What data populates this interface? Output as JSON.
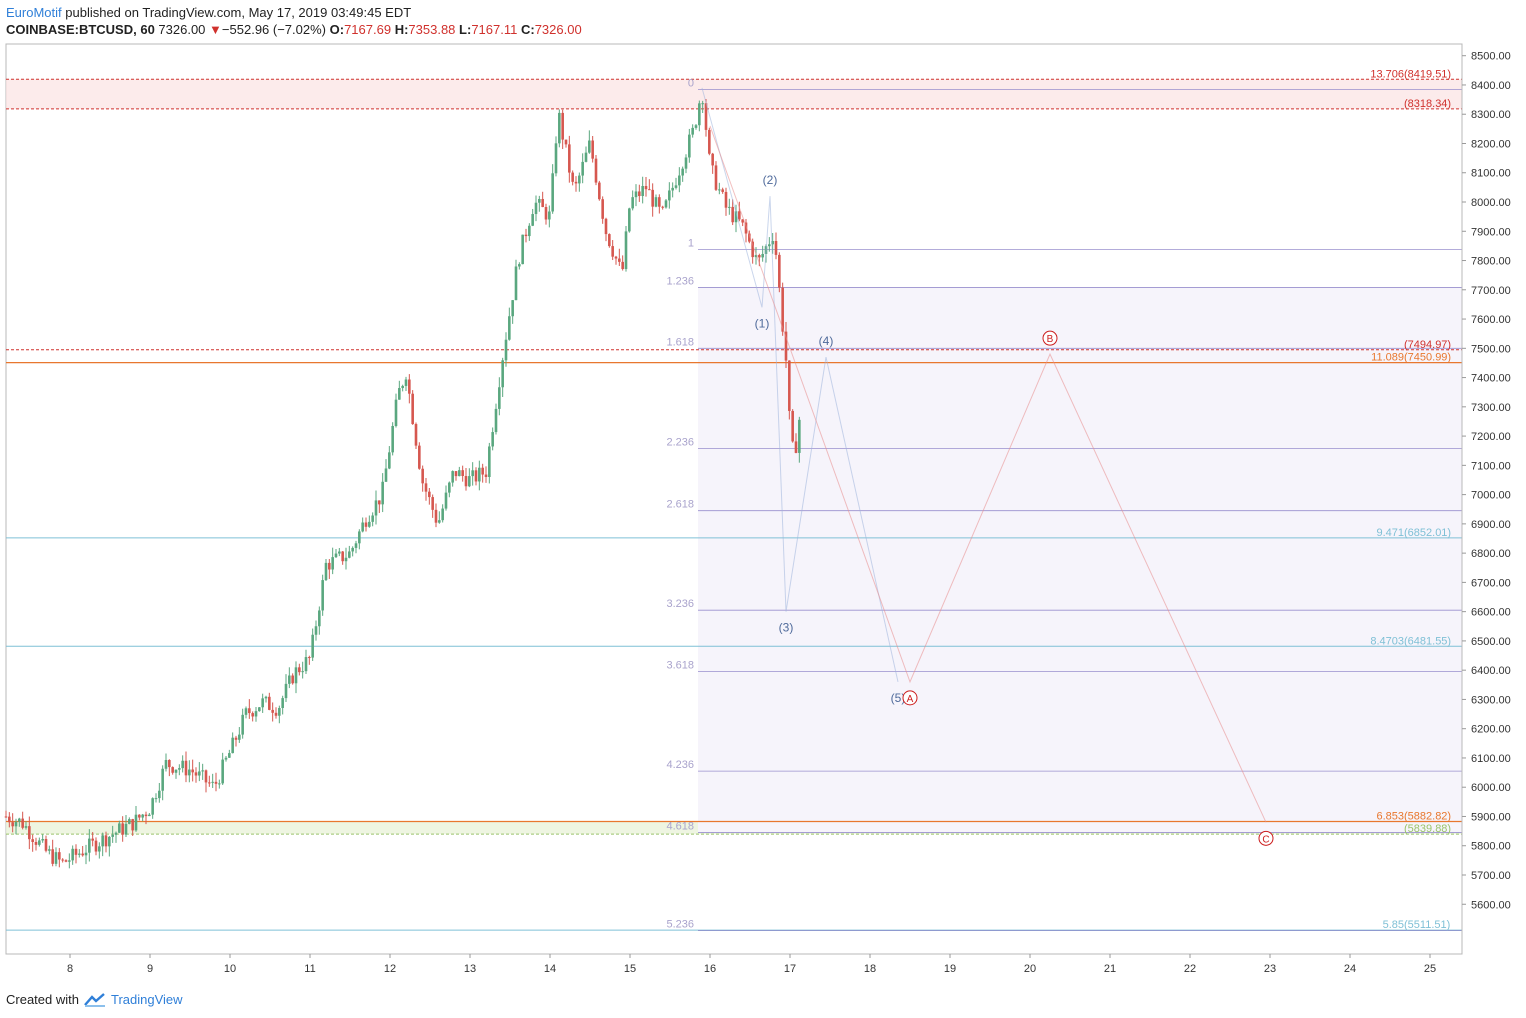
{
  "header": {
    "brand": "EuroMotif",
    "published": " published on TradingView.com, May 17, 2019 03:49:45 EDT",
    "symbol": "COINBASE:BTCUSD, 60",
    "last": "7326.00",
    "change_arrow": "▼",
    "change": "−552.96 (−7.02%)",
    "o_label": "O:",
    "o_value": "7167.69",
    "h_label": "H:",
    "h_value": "7353.88",
    "l_label": "L:",
    "l_value": "7167.11",
    "c_label": "C:",
    "c_value": "7326.00"
  },
  "footer": {
    "created": "Created with",
    "brand": "TradingView",
    "icon": "tradingview-logo-icon"
  },
  "colors": {
    "up": "#5aa77f",
    "down": "#d6574f",
    "fib": "#8f85c9",
    "fib_text": "#a9a3cc",
    "red_line": "#d0312d",
    "orange_line": "#e8772e",
    "teal_line": "#7fc0d6",
    "wave_blue": "#4f6a9b",
    "wave_red": "#cc1d1d"
  },
  "chart_data": {
    "type": "candlestick",
    "title": "",
    "xlabel": "",
    "ylabel": "",
    "x_ticks": [
      "8",
      "9",
      "10",
      "11",
      "12",
      "13",
      "14",
      "15",
      "16",
      "17",
      "18",
      "19",
      "20",
      "21",
      "22",
      "23",
      "24",
      "25"
    ],
    "y_ticks": [
      "8500.00",
      "8400.00",
      "8300.00",
      "8200.00",
      "8100.00",
      "8000.00",
      "7900.00",
      "7800.00",
      "7700.00",
      "7600.00",
      "7500.00",
      "7400.00",
      "7300.00",
      "7200.00",
      "7100.00",
      "7000.00",
      "6900.00",
      "6800.00",
      "6700.00",
      "6600.00",
      "6500.00",
      "6400.00",
      "6300.00",
      "6200.00",
      "6100.00",
      "6000.00",
      "5900.00",
      "5800.00",
      "5700.00",
      "5600.00"
    ],
    "ylim": [
      5430,
      8540
    ],
    "xlim": [
      7.2,
      25.4
    ],
    "price_path": [
      [
        7.2,
        5900
      ],
      [
        7.4,
        5880
      ],
      [
        7.7,
        5780
      ],
      [
        7.9,
        5740
      ],
      [
        8.2,
        5790
      ],
      [
        8.6,
        5850
      ],
      [
        8.8,
        5880
      ],
      [
        9.0,
        5930
      ],
      [
        9.2,
        6080
      ],
      [
        9.5,
        6060
      ],
      [
        9.8,
        6000
      ],
      [
        10.0,
        6120
      ],
      [
        10.2,
        6250
      ],
      [
        10.4,
        6290
      ],
      [
        10.6,
        6270
      ],
      [
        10.8,
        6390
      ],
      [
        11.0,
        6440
      ],
      [
        11.2,
        6760
      ],
      [
        11.5,
        6800
      ],
      [
        11.7,
        6920
      ],
      [
        11.9,
        7000
      ],
      [
        12.1,
        7340
      ],
      [
        12.2,
        7420
      ],
      [
        12.4,
        7050
      ],
      [
        12.6,
        6900
      ],
      [
        12.8,
        7080
      ],
      [
        13.0,
        7050
      ],
      [
        13.2,
        7080
      ],
      [
        13.4,
        7460
      ],
      [
        13.6,
        7800
      ],
      [
        13.8,
        8000
      ],
      [
        14.0,
        7950
      ],
      [
        14.1,
        8310
      ],
      [
        14.3,
        8030
      ],
      [
        14.5,
        8200
      ],
      [
        14.7,
        7900
      ],
      [
        14.9,
        7750
      ],
      [
        15.0,
        8000
      ],
      [
        15.2,
        8050
      ],
      [
        15.4,
        7950
      ],
      [
        15.6,
        8100
      ],
      [
        15.8,
        8250
      ],
      [
        15.9,
        8390
      ],
      [
        16.0,
        8120
      ],
      [
        16.2,
        7980
      ],
      [
        16.4,
        7920
      ],
      [
        16.6,
        7790
      ],
      [
        16.8,
        7900
      ],
      [
        16.9,
        7600
      ],
      [
        16.95,
        7460
      ],
      [
        17.0,
        7220
      ],
      [
        17.05,
        7120
      ],
      [
        17.15,
        7326
      ]
    ],
    "fib_levels": [
      {
        "label": "0",
        "price": 8385
      },
      {
        "label": "1",
        "price": 7838
      },
      {
        "label": "1.236",
        "price": 7708
      },
      {
        "label": "1.618",
        "price": 7500
      },
      {
        "label": "2.236",
        "price": 7158
      },
      {
        "label": "2.618",
        "price": 6945
      },
      {
        "label": "3.236",
        "price": 6605
      },
      {
        "label": "3.618",
        "price": 6395
      },
      {
        "label": "4.236",
        "price": 6055
      },
      {
        "label": "4.618",
        "price": 5845
      },
      {
        "label": "5.236",
        "price": 5510
      }
    ],
    "horizontal_levels": [
      {
        "left": "13.706",
        "right": "(8419.51)",
        "price": 8419.51,
        "color": "red"
      },
      {
        "left": "",
        "right": "(8318.34)",
        "price": 8318.34,
        "color": "red"
      },
      {
        "left": "",
        "right": "(7494.97)",
        "price": 7494.97,
        "color": "red"
      },
      {
        "left": "11.089",
        "right": "(7450.99)",
        "price": 7450.99,
        "color": "orange"
      },
      {
        "left": "9.471",
        "right": "(6852.01)",
        "price": 6852.01,
        "color": "teal"
      },
      {
        "left": "8.4703",
        "right": "(6481.55)",
        "price": 6481.55,
        "color": "teal"
      },
      {
        "left": "6.853",
        "right": "(5882.82)",
        "price": 5882.82,
        "color": "orange"
      },
      {
        "left": "",
        "right": "(5839.88)",
        "price": 5839.88,
        "color": "green"
      },
      {
        "left": "5.85",
        "right": "(5511.51)",
        "price": 5511.51,
        "color": "teal"
      }
    ],
    "wave_blue": [
      {
        "label": "",
        "x": 15.9,
        "y": 8390
      },
      {
        "label": "(1)",
        "x": 16.65,
        "y": 7640
      },
      {
        "label": "(2)",
        "x": 16.75,
        "y": 8020
      },
      {
        "label": "(3)",
        "x": 16.95,
        "y": 6600
      },
      {
        "label": "(4)",
        "x": 17.45,
        "y": 7470
      },
      {
        "label": "(5)",
        "x": 18.35,
        "y": 6360
      }
    ],
    "wave_red": [
      {
        "label": "",
        "x": 16.0,
        "y": 8260
      },
      {
        "label": "A",
        "x": 18.5,
        "y": 6360
      },
      {
        "label": "B",
        "x": 20.25,
        "y": 7480
      },
      {
        "label": "C",
        "x": 22.95,
        "y": 5880
      }
    ]
  }
}
